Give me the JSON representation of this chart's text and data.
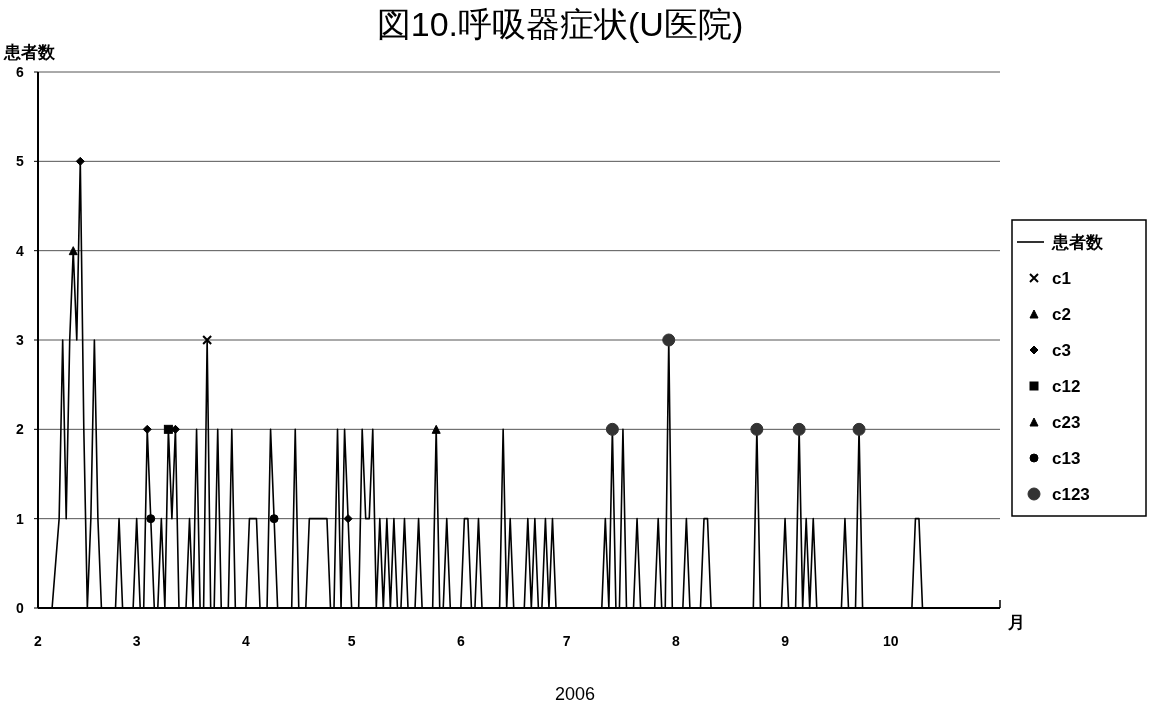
{
  "chart_data": {
    "type": "line",
    "title": "図10.呼吸器症状(U医院)",
    "ylabel": "患者数",
    "xlabel": "2006",
    "annotations": [
      "月"
    ],
    "xlim": [
      "2006-02-01",
      "2006-11-01"
    ],
    "xticks": [
      {
        "value": "2006-02-01",
        "label": "2"
      },
      {
        "value": "2006-03-01",
        "label": "3"
      },
      {
        "value": "2006-04-01",
        "label": "4"
      },
      {
        "value": "2006-05-01",
        "label": "5"
      },
      {
        "value": "2006-06-01",
        "label": "6"
      },
      {
        "value": "2006-07-01",
        "label": "7"
      },
      {
        "value": "2006-08-01",
        "label": "8"
      },
      {
        "value": "2006-09-01",
        "label": "9"
      },
      {
        "value": "2006-10-01",
        "label": "10"
      }
    ],
    "ylim": [
      0,
      6
    ],
    "yticks": [
      0,
      1,
      2,
      3,
      4,
      5,
      6
    ],
    "grid": "y",
    "legend": "right",
    "series": [
      {
        "name": "患者数",
        "type": "line",
        "color": "#000000",
        "marker": "none",
        "x": [
          "2006-02-05",
          "2006-02-07",
          "2006-02-08",
          "2006-02-09",
          "2006-02-10",
          "2006-02-11",
          "2006-02-12",
          "2006-02-13",
          "2006-02-14",
          "2006-02-15",
          "2006-02-16",
          "2006-02-17",
          "2006-02-18",
          "2006-02-19",
          "2006-02-23",
          "2006-02-24",
          "2006-02-25",
          "2006-02-28",
          "2006-03-01",
          "2006-03-02",
          "2006-03-03",
          "2006-03-04",
          "2006-03-05",
          "2006-03-06",
          "2006-03-07",
          "2006-03-08",
          "2006-03-09",
          "2006-03-10",
          "2006-03-11",
          "2006-03-12",
          "2006-03-13",
          "2006-03-15",
          "2006-03-16",
          "2006-03-17",
          "2006-03-18",
          "2006-03-19",
          "2006-03-20",
          "2006-03-21",
          "2006-03-22",
          "2006-03-23",
          "2006-03-24",
          "2006-03-25",
          "2006-03-27",
          "2006-03-28",
          "2006-03-29",
          "2006-04-01",
          "2006-04-02",
          "2006-04-03",
          "2006-04-04",
          "2006-04-05",
          "2006-04-07",
          "2006-04-08",
          "2006-04-09",
          "2006-04-10",
          "2006-04-14",
          "2006-04-15",
          "2006-04-16",
          "2006-04-18",
          "2006-04-19",
          "2006-04-20",
          "2006-04-21",
          "2006-04-22",
          "2006-04-23",
          "2006-04-24",
          "2006-04-25",
          "2006-04-26",
          "2006-04-27",
          "2006-04-28",
          "2006-04-29",
          "2006-04-30",
          "2006-05-01",
          "2006-05-03",
          "2006-05-04",
          "2006-05-05",
          "2006-05-06",
          "2006-05-07",
          "2006-05-08",
          "2006-05-09",
          "2006-05-10",
          "2006-05-11",
          "2006-05-12",
          "2006-05-13",
          "2006-05-14",
          "2006-05-15",
          "2006-05-16",
          "2006-05-17",
          "2006-05-19",
          "2006-05-20",
          "2006-05-21",
          "2006-05-24",
          "2006-05-25",
          "2006-05-26",
          "2006-05-27",
          "2006-05-28",
          "2006-05-29",
          "2006-06-01",
          "2006-06-02",
          "2006-06-03",
          "2006-06-04",
          "2006-06-05",
          "2006-06-06",
          "2006-06-07",
          "2006-06-12",
          "2006-06-13",
          "2006-06-14",
          "2006-06-15",
          "2006-06-16",
          "2006-06-19",
          "2006-06-20",
          "2006-06-21",
          "2006-06-22",
          "2006-06-23",
          "2006-06-24",
          "2006-06-25",
          "2006-06-26",
          "2006-06-27",
          "2006-06-28",
          "2006-07-11",
          "2006-07-12",
          "2006-07-13",
          "2006-07-14",
          "2006-07-15",
          "2006-07-16",
          "2006-07-17",
          "2006-07-18",
          "2006-07-20",
          "2006-07-21",
          "2006-07-22",
          "2006-07-26",
          "2006-07-27",
          "2006-07-28",
          "2006-07-29",
          "2006-07-30",
          "2006-07-31",
          "2006-08-03",
          "2006-08-04",
          "2006-08-05",
          "2006-08-08",
          "2006-08-09",
          "2006-08-10",
          "2006-08-11",
          "2006-08-23",
          "2006-08-24",
          "2006-08-25",
          "2006-08-31",
          "2006-09-01",
          "2006-09-02",
          "2006-09-04",
          "2006-09-05",
          "2006-09-06",
          "2006-09-07",
          "2006-09-08",
          "2006-09-09",
          "2006-09-10",
          "2006-09-17",
          "2006-09-18",
          "2006-09-19",
          "2006-09-21",
          "2006-09-22",
          "2006-09-23",
          "2006-10-07",
          "2006-10-08",
          "2006-10-09",
          "2006-10-10"
        ],
        "values": [
          0,
          1,
          3,
          1,
          3,
          4,
          3,
          5,
          2,
          0,
          1,
          3,
          1,
          0,
          0,
          1,
          0,
          0,
          1,
          0,
          0,
          2,
          1,
          0,
          0,
          1,
          0,
          2,
          1,
          2,
          0,
          0,
          1,
          0,
          2,
          0,
          0,
          3,
          0,
          0,
          2,
          0,
          0,
          2,
          0,
          0,
          1,
          1,
          1,
          0,
          0,
          2,
          1,
          0,
          0,
          2,
          0,
          0,
          1,
          1,
          1,
          1,
          1,
          1,
          0,
          0,
          2,
          0,
          2,
          1,
          0,
          0,
          2,
          1,
          1,
          2,
          0,
          1,
          0,
          1,
          0,
          1,
          0,
          0,
          1,
          0,
          0,
          1,
          0,
          0,
          2,
          0,
          0,
          1,
          0,
          0,
          1,
          1,
          0,
          0,
          1,
          0,
          0,
          2,
          0,
          1,
          0,
          0,
          1,
          0,
          1,
          0,
          0,
          1,
          0,
          1,
          0,
          0,
          1,
          0,
          2,
          0,
          0,
          2,
          0,
          0,
          1,
          0,
          0,
          1,
          0,
          0,
          3,
          0,
          0,
          1,
          0,
          0,
          1,
          1,
          0,
          0,
          2,
          0,
          0,
          1,
          0,
          0,
          2,
          0,
          1,
          0,
          1,
          0,
          0,
          1,
          0,
          0,
          2,
          0,
          0,
          1,
          1,
          0
        ]
      },
      {
        "name": "c1",
        "type": "scatter",
        "color": "#000000",
        "marker": "cross",
        "x": [
          "2006-03-21"
        ],
        "values": [
          3
        ]
      },
      {
        "name": "c2",
        "type": "scatter",
        "color": "#000000",
        "marker": "triangle",
        "x": [
          "2006-02-11"
        ],
        "values": [
          4
        ]
      },
      {
        "name": "c3",
        "type": "scatter",
        "color": "#000000",
        "marker": "diamond",
        "x": [
          "2006-02-13",
          "2006-03-04",
          "2006-03-12",
          "2006-04-30"
        ],
        "values": [
          5,
          2,
          2,
          1
        ]
      },
      {
        "name": "c12",
        "type": "scatter",
        "color": "#000000",
        "marker": "square",
        "x": [
          "2006-03-10"
        ],
        "values": [
          2
        ]
      },
      {
        "name": "c23",
        "type": "scatter",
        "color": "#000000",
        "marker": "triangle",
        "x": [
          "2006-05-25"
        ],
        "values": [
          2
        ]
      },
      {
        "name": "c13",
        "type": "scatter",
        "color": "#000000",
        "marker": "circle",
        "x": [
          "2006-03-05",
          "2006-04-09"
        ],
        "values": [
          1,
          1
        ]
      },
      {
        "name": "c123",
        "type": "scatter",
        "color": "#333333",
        "marker": "circle",
        "x": [
          "2006-07-14",
          "2006-07-30",
          "2006-08-24",
          "2006-09-05",
          "2006-09-22"
        ],
        "values": [
          2,
          3,
          2,
          2,
          2
        ]
      }
    ]
  }
}
